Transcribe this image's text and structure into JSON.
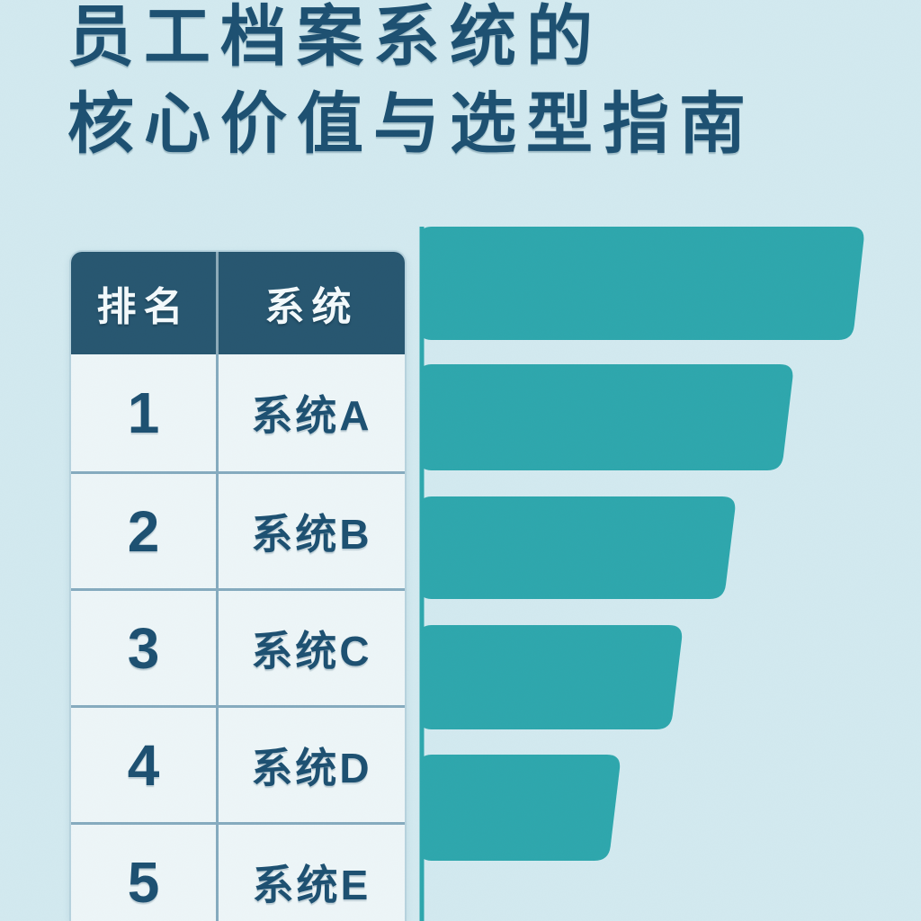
{
  "page": {
    "background_color": "#d3eaf0",
    "text_color": "#1d5071"
  },
  "title": {
    "line1": "员工档案系统的",
    "line2": "核心价值与选型指南"
  },
  "table": {
    "headers": [
      "排名",
      "系统"
    ],
    "header_bg": "#275670",
    "header_text_color": "#f4fafc",
    "cell_bg": "#eef6f8",
    "divider_color": "#86abbf",
    "rows": [
      {
        "rank": "1",
        "system": "系统A"
      },
      {
        "rank": "2",
        "system": "系统B"
      },
      {
        "rank": "3",
        "system": "系统C"
      },
      {
        "rank": "4",
        "system": "系统D"
      },
      {
        "rank": "5",
        "system": "系统E"
      }
    ]
  },
  "chart_data": {
    "type": "bar",
    "orientation": "horizontal",
    "categories": [
      "系统A",
      "系统B",
      "系统C",
      "系统D",
      "系统E"
    ],
    "values": [
      100,
      84,
      71,
      59,
      45
    ],
    "value_note": "relative bar lengths in % of longest bar; chart shows no numeric axis, tick labels or data labels",
    "title": "",
    "xlabel": "",
    "ylabel": "",
    "legend": "none",
    "grid": false,
    "bar_color": "#2ea7ad",
    "axis_line_color": "#2ea7ad",
    "bar_style": "rounded tapered funnel bars attached to a vertical axis line"
  }
}
